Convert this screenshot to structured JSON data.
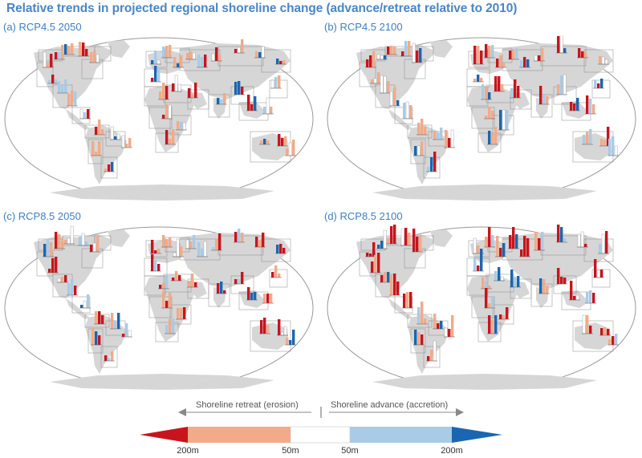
{
  "title": "Relative trends in projected regional shoreline change (advance/retreat relative to 2010)",
  "panels": [
    {
      "label": "(a) RCP4.5 2050"
    },
    {
      "label": "(b) RCP4.5 2100"
    },
    {
      "label": "(c) RCP8.5 2050"
    },
    {
      "label": "(d) RCP8.5 2100"
    }
  ],
  "legend": {
    "retreat_label": "Shoreline retreat (erosion)",
    "advance_label": "Shoreline advance (accretion)",
    "ticks": [
      "200m",
      "50m",
      "50m",
      "200m"
    ],
    "colors": {
      "strong_retreat": "#c8141d",
      "moderate_retreat": "#f2aa88",
      "neutral": "#ffffff",
      "moderate_advance": "#a8cbe6",
      "strong_advance": "#1a66b0"
    }
  },
  "colors": {
    "title": "#4a86c5",
    "land": "#d6d6d6",
    "region_outline": "#8a8a8a",
    "frame": "#999999"
  }
}
